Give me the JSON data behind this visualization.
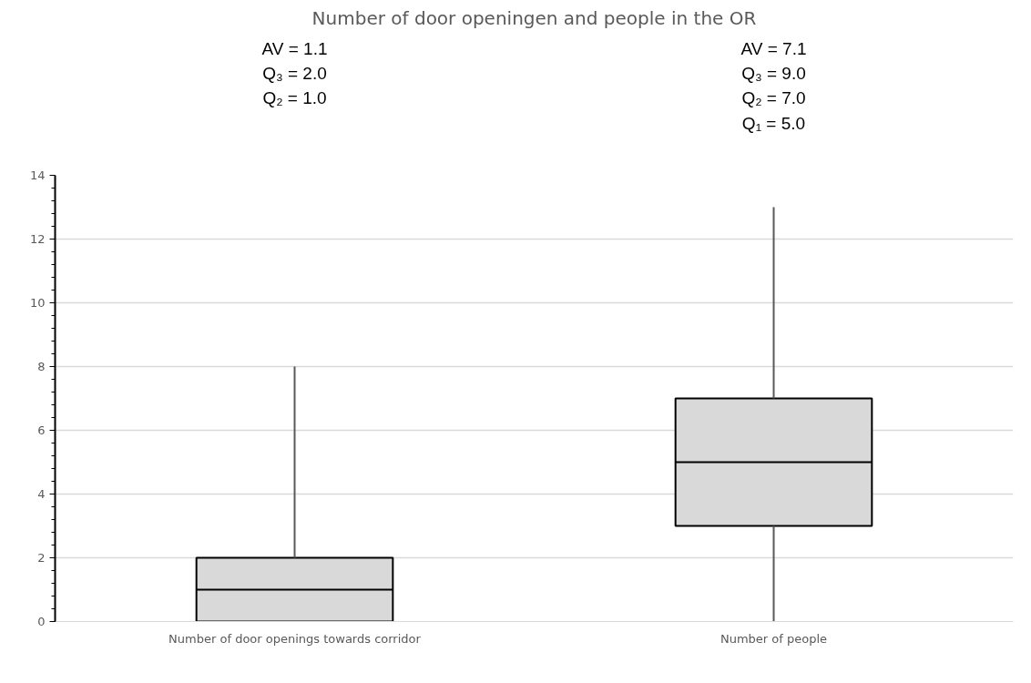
{
  "chart_data": {
    "type": "box",
    "title": "Number of door openingen and people in the OR",
    "categories": [
      "Number of door openings towards corridor",
      "Number of people"
    ],
    "boxes": [
      {
        "low": 0,
        "q1": 0,
        "median": 1,
        "q3": 2,
        "high": 8
      },
      {
        "low": 0,
        "q1": 3,
        "median": 5,
        "q3": 7,
        "high": 13
      }
    ],
    "color": "#d9d9d9",
    "ylim": [
      0,
      14
    ],
    "yticks": [
      0,
      2,
      4,
      6,
      8,
      10,
      12,
      14
    ],
    "grid": "y",
    "annotations": [
      "AV = 1.1\nQ₃ = 2.0\nQ₂ = 1.0",
      "AV = 7.1\nQ₃ = 9.0\nQ₂ = 7.0\nQ₁ = 5.0"
    ]
  }
}
